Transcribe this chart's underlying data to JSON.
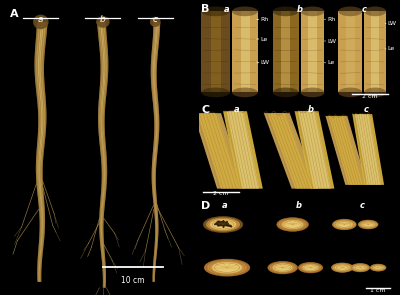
{
  "figure_bg": "#000000",
  "text_color": "#ffffff",
  "scale_bar_A": "10 cm",
  "scale_bar_B": "2 cm",
  "scale_bar_C": "2 cm",
  "scale_bar_D": "1 cm",
  "bark_dark": "#6b4c1e",
  "bark_mid": "#8b6820",
  "bark_light": "#b08830",
  "bark_tan": "#c8a050",
  "bark_yellow": "#d4b060",
  "bark_cream": "#e0c878",
  "root_tan": "#c8a055",
  "root_light": "#ddb860",
  "root_cream": "#e8cc80",
  "root_dark": "#7a5520",
  "cross_outer": "#b07830",
  "cross_mid": "#c89040",
  "cross_inner": "#d8a850",
  "cross_cream": "#e8c870",
  "cross_dark_center": "#2a1a00",
  "cross_ring": "#8b6020",
  "fiber_yellow": "#d4b040",
  "fiber_tan": "#c09030",
  "fiber_dark": "#8a6418"
}
